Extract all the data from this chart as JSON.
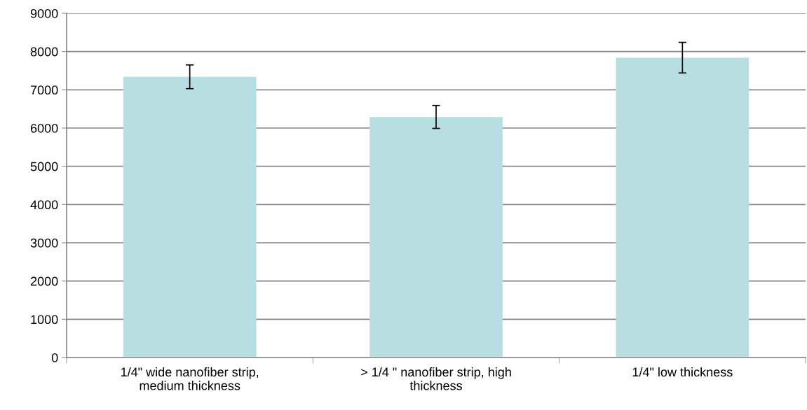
{
  "chart_data": {
    "type": "bar",
    "categories": [
      "1/4\" wide nanofiber strip,\nmedium thickness",
      "> 1/4 \" nanofiber strip, high\nthickness",
      "1/4\" low thickness"
    ],
    "values": [
      7340,
      6290,
      7840
    ],
    "errors": [
      310,
      300,
      400
    ],
    "color": "#b7dfe1",
    "ylim": [
      0,
      9000
    ],
    "yticks": [
      0,
      1000,
      2000,
      3000,
      4000,
      5000,
      6000,
      7000,
      8000,
      9000
    ],
    "grid": "y"
  }
}
